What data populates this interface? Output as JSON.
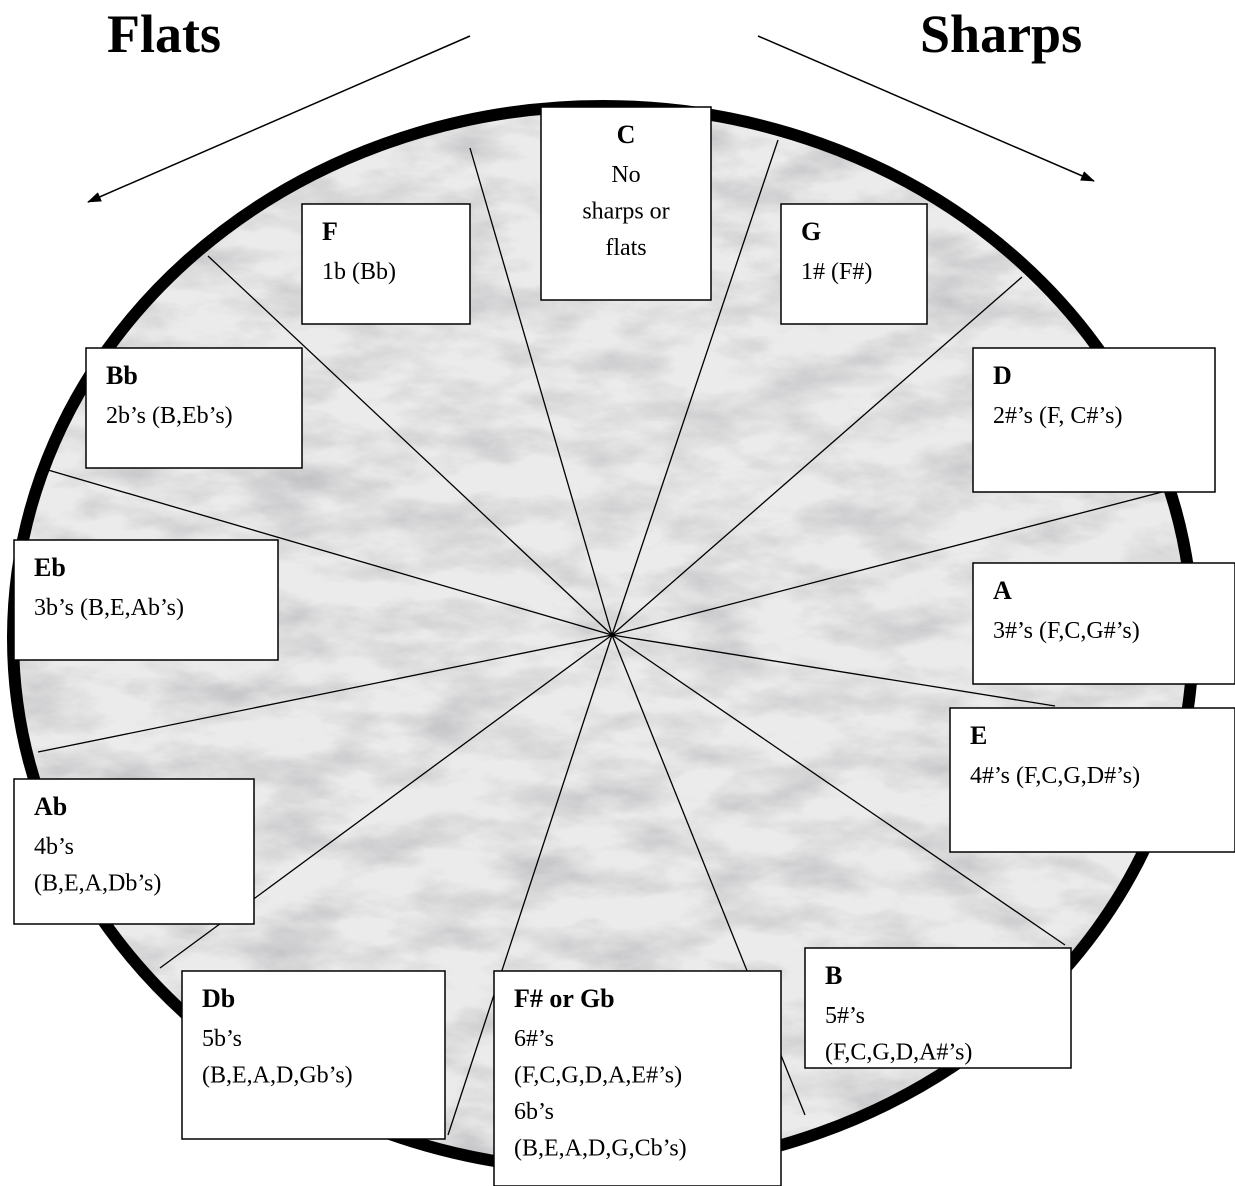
{
  "header": {
    "flats": "Flats",
    "sharps": "Sharps"
  },
  "keys": [
    {
      "name": "C",
      "lines": [
        "No",
        "sharps or",
        "flats"
      ]
    },
    {
      "name": "G",
      "lines": [
        "1# (F#)"
      ]
    },
    {
      "name": "D",
      "lines": [
        "2#’s (F, C#’s)"
      ]
    },
    {
      "name": "A",
      "lines": [
        "3#’s (F,C,G#’s)"
      ]
    },
    {
      "name": "E",
      "lines": [
        "4#’s (F,C,G,D#’s)"
      ]
    },
    {
      "name": "B",
      "lines": [
        "5#’s",
        "(F,C,G,D,A#’s)"
      ]
    },
    {
      "name": "F# or Gb",
      "lines": [
        "6#’s",
        "(F,C,G,D,A,E#’s)",
        "6b’s",
        "(B,E,A,D,G,Cb’s)"
      ]
    },
    {
      "name": "Db",
      "lines": [
        "5b’s",
        "(B,E,A,D,Gb’s)"
      ]
    },
    {
      "name": "Ab",
      "lines": [
        "4b’s",
        "(B,E,A,Db’s)"
      ]
    },
    {
      "name": "Eb",
      "lines": [
        "3b’s (B,E,Ab’s)"
      ]
    },
    {
      "name": "Bb",
      "lines": [
        "2b’s (B,Eb’s)"
      ]
    },
    {
      "name": "F",
      "lines": [
        "1b (Bb)"
      ]
    }
  ]
}
